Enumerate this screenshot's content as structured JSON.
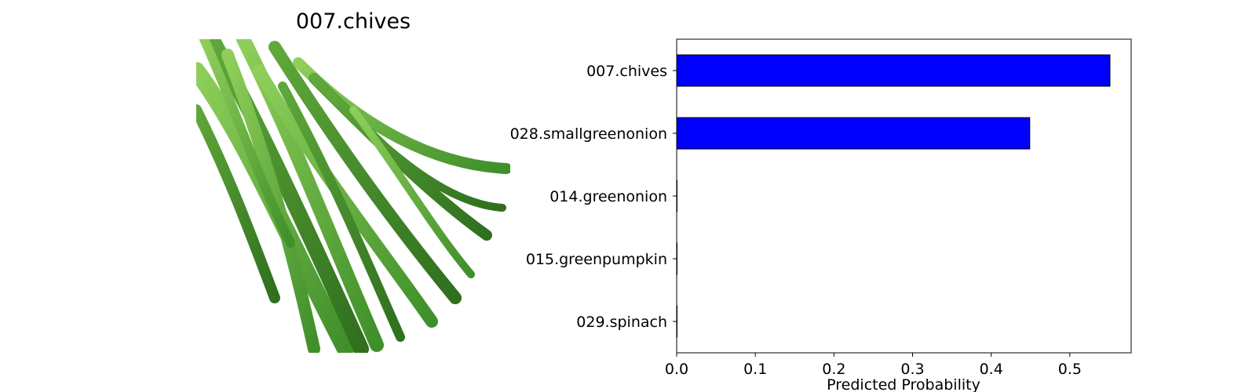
{
  "image_panel": {
    "title": "007.chives",
    "image_icon": "chives-bundle-photo"
  },
  "chart_data": {
    "type": "bar",
    "orientation": "horizontal",
    "title": "",
    "categories": [
      "007.chives",
      "028.smallgreenonion",
      "014.greenonion",
      "015.greenpumpkin",
      "029.spinach"
    ],
    "values": [
      0.551,
      0.449,
      0.0005,
      0.0003,
      0.0001
    ],
    "xlabel": "Predicted Probability",
    "ylabel": "",
    "xlim": [
      0,
      0.578
    ],
    "xticks": [
      "0.0",
      "0.1",
      "0.2",
      "0.3",
      "0.4",
      "0.5"
    ],
    "grid": false,
    "legend": "none",
    "bar_color": "#0000ff",
    "edge_color": "#000000"
  }
}
